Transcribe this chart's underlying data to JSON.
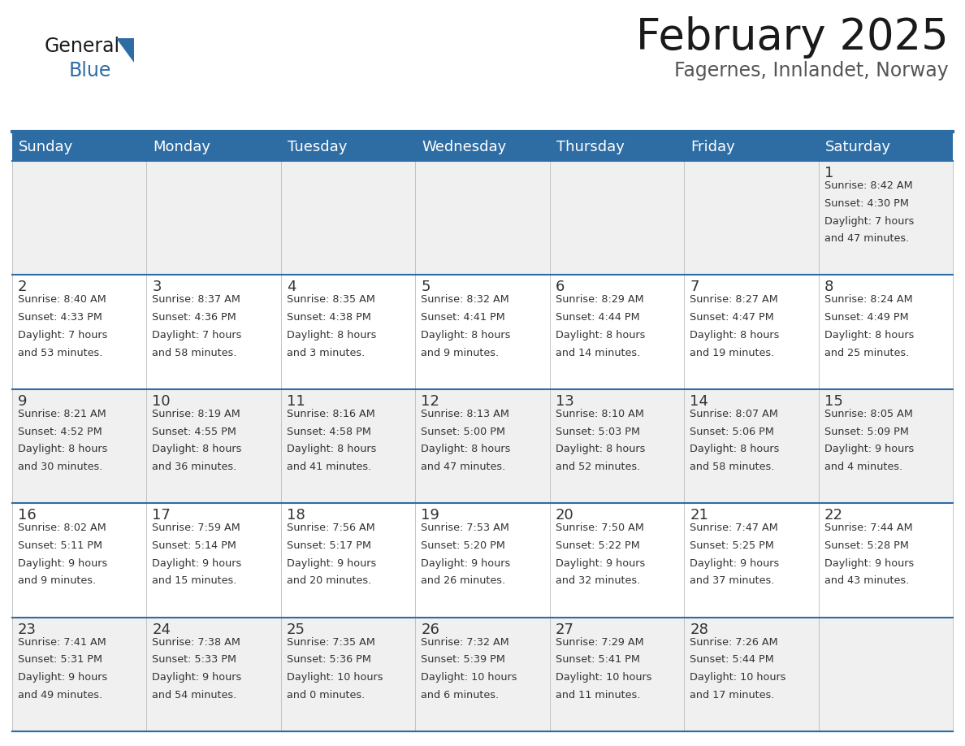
{
  "title": "February 2025",
  "subtitle": "Fagernes, Innlandet, Norway",
  "header_color": "#2E6DA4",
  "header_text_color": "#FFFFFF",
  "background_color": "#FFFFFF",
  "cell_bg_light": "#F0F0F0",
  "cell_bg_white": "#FFFFFF",
  "separator_color": "#2E6DA4",
  "grid_color": "#BBBBBB",
  "text_color": "#333333",
  "days_of_week": [
    "Sunday",
    "Monday",
    "Tuesday",
    "Wednesday",
    "Thursday",
    "Friday",
    "Saturday"
  ],
  "title_fontsize": 38,
  "subtitle_fontsize": 17,
  "day_header_fontsize": 13,
  "day_num_fontsize": 13,
  "cell_text_fontsize": 9.2,
  "logo_general_fontsize": 17,
  "logo_blue_fontsize": 17,
  "weeks": [
    [
      {
        "day": null,
        "sunrise": null,
        "sunset": null,
        "daylight": null
      },
      {
        "day": null,
        "sunrise": null,
        "sunset": null,
        "daylight": null
      },
      {
        "day": null,
        "sunrise": null,
        "sunset": null,
        "daylight": null
      },
      {
        "day": null,
        "sunrise": null,
        "sunset": null,
        "daylight": null
      },
      {
        "day": null,
        "sunrise": null,
        "sunset": null,
        "daylight": null
      },
      {
        "day": null,
        "sunrise": null,
        "sunset": null,
        "daylight": null
      },
      {
        "day": 1,
        "sunrise": "8:42 AM",
        "sunset": "4:30 PM",
        "daylight": "7 hours and 47 minutes"
      }
    ],
    [
      {
        "day": 2,
        "sunrise": "8:40 AM",
        "sunset": "4:33 PM",
        "daylight": "7 hours and 53 minutes"
      },
      {
        "day": 3,
        "sunrise": "8:37 AM",
        "sunset": "4:36 PM",
        "daylight": "7 hours and 58 minutes"
      },
      {
        "day": 4,
        "sunrise": "8:35 AM",
        "sunset": "4:38 PM",
        "daylight": "8 hours and 3 minutes"
      },
      {
        "day": 5,
        "sunrise": "8:32 AM",
        "sunset": "4:41 PM",
        "daylight": "8 hours and 9 minutes"
      },
      {
        "day": 6,
        "sunrise": "8:29 AM",
        "sunset": "4:44 PM",
        "daylight": "8 hours and 14 minutes"
      },
      {
        "day": 7,
        "sunrise": "8:27 AM",
        "sunset": "4:47 PM",
        "daylight": "8 hours and 19 minutes"
      },
      {
        "day": 8,
        "sunrise": "8:24 AM",
        "sunset": "4:49 PM",
        "daylight": "8 hours and 25 minutes"
      }
    ],
    [
      {
        "day": 9,
        "sunrise": "8:21 AM",
        "sunset": "4:52 PM",
        "daylight": "8 hours and 30 minutes"
      },
      {
        "day": 10,
        "sunrise": "8:19 AM",
        "sunset": "4:55 PM",
        "daylight": "8 hours and 36 minutes"
      },
      {
        "day": 11,
        "sunrise": "8:16 AM",
        "sunset": "4:58 PM",
        "daylight": "8 hours and 41 minutes"
      },
      {
        "day": 12,
        "sunrise": "8:13 AM",
        "sunset": "5:00 PM",
        "daylight": "8 hours and 47 minutes"
      },
      {
        "day": 13,
        "sunrise": "8:10 AM",
        "sunset": "5:03 PM",
        "daylight": "8 hours and 52 minutes"
      },
      {
        "day": 14,
        "sunrise": "8:07 AM",
        "sunset": "5:06 PM",
        "daylight": "8 hours and 58 minutes"
      },
      {
        "day": 15,
        "sunrise": "8:05 AM",
        "sunset": "5:09 PM",
        "daylight": "9 hours and 4 minutes"
      }
    ],
    [
      {
        "day": 16,
        "sunrise": "8:02 AM",
        "sunset": "5:11 PM",
        "daylight": "9 hours and 9 minutes"
      },
      {
        "day": 17,
        "sunrise": "7:59 AM",
        "sunset": "5:14 PM",
        "daylight": "9 hours and 15 minutes"
      },
      {
        "day": 18,
        "sunrise": "7:56 AM",
        "sunset": "5:17 PM",
        "daylight": "9 hours and 20 minutes"
      },
      {
        "day": 19,
        "sunrise": "7:53 AM",
        "sunset": "5:20 PM",
        "daylight": "9 hours and 26 minutes"
      },
      {
        "day": 20,
        "sunrise": "7:50 AM",
        "sunset": "5:22 PM",
        "daylight": "9 hours and 32 minutes"
      },
      {
        "day": 21,
        "sunrise": "7:47 AM",
        "sunset": "5:25 PM",
        "daylight": "9 hours and 37 minutes"
      },
      {
        "day": 22,
        "sunrise": "7:44 AM",
        "sunset": "5:28 PM",
        "daylight": "9 hours and 43 minutes"
      }
    ],
    [
      {
        "day": 23,
        "sunrise": "7:41 AM",
        "sunset": "5:31 PM",
        "daylight": "9 hours and 49 minutes"
      },
      {
        "day": 24,
        "sunrise": "7:38 AM",
        "sunset": "5:33 PM",
        "daylight": "9 hours and 54 minutes"
      },
      {
        "day": 25,
        "sunrise": "7:35 AM",
        "sunset": "5:36 PM",
        "daylight": "10 hours and 0 minutes"
      },
      {
        "day": 26,
        "sunrise": "7:32 AM",
        "sunset": "5:39 PM",
        "daylight": "10 hours and 6 minutes"
      },
      {
        "day": 27,
        "sunrise": "7:29 AM",
        "sunset": "5:41 PM",
        "daylight": "10 hours and 11 minutes"
      },
      {
        "day": 28,
        "sunrise": "7:26 AM",
        "sunset": "5:44 PM",
        "daylight": "10 hours and 17 minutes"
      },
      {
        "day": null,
        "sunrise": null,
        "sunset": null,
        "daylight": null
      }
    ]
  ]
}
